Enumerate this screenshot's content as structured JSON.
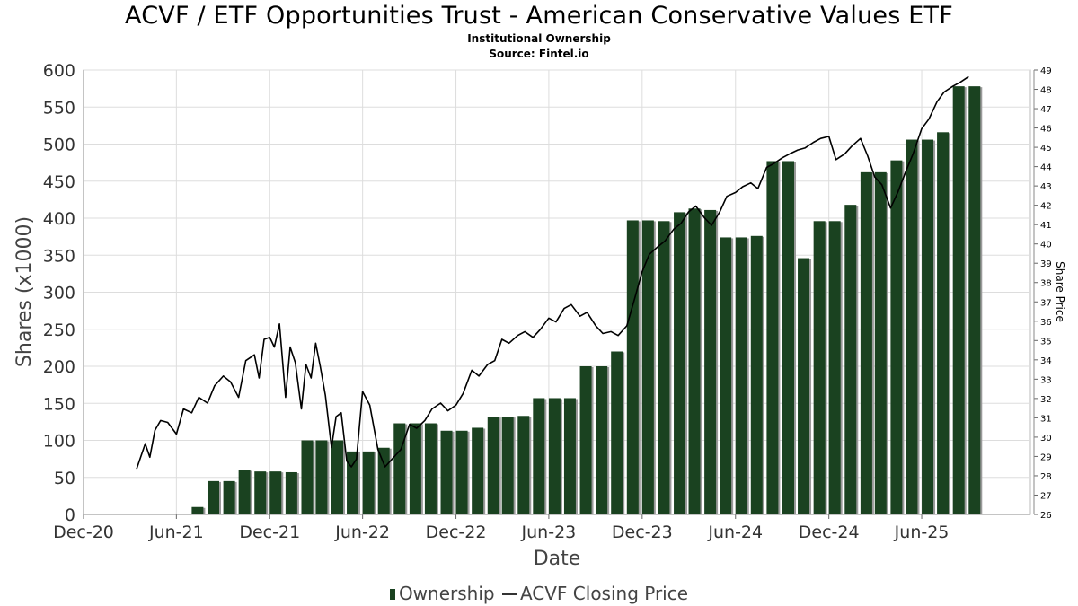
{
  "title": "ACVF / ETF Opportunities Trust - American Conservative Values ETF",
  "subtitle": "Institutional Ownership",
  "source": "Source: Fintel.io",
  "colors": {
    "bar": "#1a4220",
    "bar_shadow": "#9a9a9a",
    "line": "#000000",
    "grid": "#dddddd"
  },
  "chart_data": {
    "type": "bar",
    "xlabel": "Date",
    "ylabel": "Shares (x1000)",
    "y2label": "Share Price",
    "ylim": [
      0,
      600
    ],
    "y2lim": [
      26,
      49
    ],
    "xlim": [
      "2020-12-01",
      "2025-12-31"
    ],
    "grid": true,
    "legend_position": "bottom",
    "y_ticks": [
      0,
      50,
      100,
      150,
      200,
      250,
      300,
      350,
      400,
      450,
      500,
      550,
      600
    ],
    "y2_ticks": [
      26,
      27,
      28,
      29,
      30,
      31,
      32,
      33,
      34,
      35,
      36,
      37,
      38,
      39,
      40,
      41,
      42,
      43,
      44,
      45,
      46,
      47,
      48,
      49
    ],
    "x_ticks": [
      {
        "label": "Dec-20",
        "date": "2020-12-01"
      },
      {
        "label": "Jun-21",
        "date": "2021-06-01"
      },
      {
        "label": "Dec-21",
        "date": "2021-12-01"
      },
      {
        "label": "Jun-22",
        "date": "2022-06-01"
      },
      {
        "label": "Dec-22",
        "date": "2022-12-01"
      },
      {
        "label": "Jun-23",
        "date": "2023-06-01"
      },
      {
        "label": "Dec-23",
        "date": "2023-12-01"
      },
      {
        "label": "Jun-24",
        "date": "2024-06-01"
      },
      {
        "label": "Dec-24",
        "date": "2024-12-01"
      },
      {
        "label": "Jun-25",
        "date": "2025-06-01"
      }
    ],
    "series": [
      {
        "name": "Ownership",
        "type": "bar",
        "x": [
          "2021-07-01",
          "2021-08-01",
          "2021-09-01",
          "2021-10-01",
          "2021-11-01",
          "2021-12-01",
          "2022-01-01",
          "2022-02-01",
          "2022-03-01",
          "2022-04-01",
          "2022-05-01",
          "2022-06-01",
          "2022-07-01",
          "2022-08-01",
          "2022-09-01",
          "2022-10-01",
          "2022-11-01",
          "2022-12-01",
          "2023-01-01",
          "2023-02-01",
          "2023-03-01",
          "2023-04-01",
          "2023-05-01",
          "2023-06-01",
          "2023-07-01",
          "2023-08-01",
          "2023-09-01",
          "2023-10-01",
          "2023-11-01",
          "2023-12-01",
          "2024-01-01",
          "2024-02-01",
          "2024-03-01",
          "2024-04-01",
          "2024-05-01",
          "2024-06-01",
          "2024-07-01",
          "2024-08-01",
          "2024-09-01",
          "2024-10-01",
          "2024-11-01",
          "2024-12-01",
          "2025-01-01",
          "2025-02-01",
          "2025-03-01",
          "2025-04-01",
          "2025-05-01",
          "2025-06-01",
          "2025-07-01",
          "2025-08-01",
          "2025-09-01"
        ],
        "values": [
          10,
          45,
          45,
          60,
          58,
          58,
          57,
          100,
          100,
          100,
          85,
          85,
          90,
          123,
          123,
          123,
          113,
          113,
          117,
          132,
          132,
          133,
          157,
          157,
          157,
          200,
          200,
          220,
          397,
          397,
          396,
          408,
          413,
          411,
          374,
          374,
          376,
          477,
          477,
          346,
          396,
          396,
          418,
          462,
          462,
          478,
          506,
          506,
          516,
          578,
          578
        ]
      },
      {
        "name": "ACVF Closing Price",
        "type": "line",
        "x": [
          "2021-03-15",
          "2021-04-01",
          "2021-04-10",
          "2021-04-20",
          "2021-05-01",
          "2021-05-15",
          "2021-06-01",
          "2021-06-15",
          "2021-07-01",
          "2021-07-15",
          "2021-08-01",
          "2021-08-15",
          "2021-09-01",
          "2021-09-15",
          "2021-10-01",
          "2021-10-15",
          "2021-11-01",
          "2021-11-10",
          "2021-11-20",
          "2021-12-01",
          "2021-12-10",
          "2021-12-20",
          "2022-01-01",
          "2022-01-10",
          "2022-01-20",
          "2022-02-01",
          "2022-02-10",
          "2022-02-20",
          "2022-03-01",
          "2022-03-10",
          "2022-03-20",
          "2022-04-01",
          "2022-04-10",
          "2022-04-20",
          "2022-05-01",
          "2022-05-10",
          "2022-05-20",
          "2022-06-01",
          "2022-06-15",
          "2022-07-01",
          "2022-07-15",
          "2022-08-01",
          "2022-08-15",
          "2022-09-01",
          "2022-09-15",
          "2022-10-01",
          "2022-10-15",
          "2022-11-01",
          "2022-11-15",
          "2022-12-01",
          "2022-12-15",
          "2023-01-01",
          "2023-01-15",
          "2023-02-01",
          "2023-02-15",
          "2023-03-01",
          "2023-03-15",
          "2023-04-01",
          "2023-04-15",
          "2023-05-01",
          "2023-05-15",
          "2023-06-01",
          "2023-06-15",
          "2023-07-01",
          "2023-07-15",
          "2023-08-01",
          "2023-08-15",
          "2023-09-01",
          "2023-09-15",
          "2023-10-01",
          "2023-10-15",
          "2023-11-01",
          "2023-11-15",
          "2023-12-01",
          "2023-12-15",
          "2024-01-01",
          "2024-01-15",
          "2024-02-01",
          "2024-02-15",
          "2024-03-01",
          "2024-03-15",
          "2024-04-01",
          "2024-04-15",
          "2024-05-01",
          "2024-05-15",
          "2024-06-01",
          "2024-06-15",
          "2024-07-01",
          "2024-07-15",
          "2024-08-01",
          "2024-08-15",
          "2024-09-01",
          "2024-09-15",
          "2024-10-01",
          "2024-10-15",
          "2024-11-01",
          "2024-11-15",
          "2024-12-01",
          "2024-12-15",
          "2025-01-01",
          "2025-01-15",
          "2025-02-01",
          "2025-02-15",
          "2025-03-01",
          "2025-03-15",
          "2025-04-01",
          "2025-04-15",
          "2025-05-01",
          "2025-05-15",
          "2025-06-01",
          "2025-06-15",
          "2025-07-01",
          "2025-07-15",
          "2025-08-01",
          "2025-08-15",
          "2025-09-01"
        ],
        "values": [
          28.5,
          29.8,
          29.1,
          30.5,
          31.0,
          30.9,
          30.3,
          31.6,
          31.4,
          32.2,
          31.9,
          32.8,
          33.3,
          33.0,
          32.2,
          34.1,
          34.4,
          33.2,
          35.2,
          35.3,
          34.8,
          36.0,
          32.2,
          34.8,
          34.0,
          31.6,
          33.9,
          33.2,
          35.0,
          33.8,
          32.3,
          29.6,
          31.2,
          31.4,
          28.9,
          28.6,
          29.0,
          32.5,
          31.8,
          29.5,
          28.6,
          29.1,
          29.5,
          30.8,
          30.6,
          31.0,
          31.6,
          31.9,
          31.5,
          31.8,
          32.4,
          33.6,
          33.3,
          33.9,
          34.1,
          35.2,
          35.0,
          35.4,
          35.6,
          35.3,
          35.7,
          36.3,
          36.1,
          36.8,
          37.0,
          36.4,
          36.6,
          35.9,
          35.5,
          35.6,
          35.4,
          35.9,
          37.2,
          38.7,
          39.6,
          40.0,
          40.3,
          40.9,
          41.2,
          41.8,
          42.1,
          41.5,
          41.1,
          41.8,
          42.6,
          42.8,
          43.1,
          43.3,
          43.0,
          44.1,
          44.3,
          44.6,
          44.8,
          45.0,
          45.1,
          45.4,
          45.6,
          45.7,
          44.5,
          44.8,
          45.2,
          45.6,
          44.7,
          43.6,
          43.2,
          42.0,
          42.8,
          43.9,
          44.8,
          46.1,
          46.6,
          47.5,
          48.0,
          48.3,
          48.5,
          48.8
        ]
      }
    ]
  },
  "legend": {
    "ownership_label": "Ownership",
    "price_label": "ACVF Closing Price"
  }
}
